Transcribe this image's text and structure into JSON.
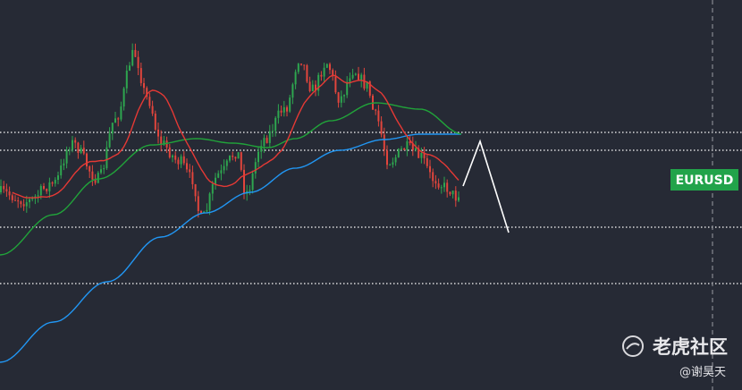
{
  "symbol_label": "EURUSD",
  "watermark": {
    "brand": "老虎社区",
    "author": "@谢昊天"
  }
}
